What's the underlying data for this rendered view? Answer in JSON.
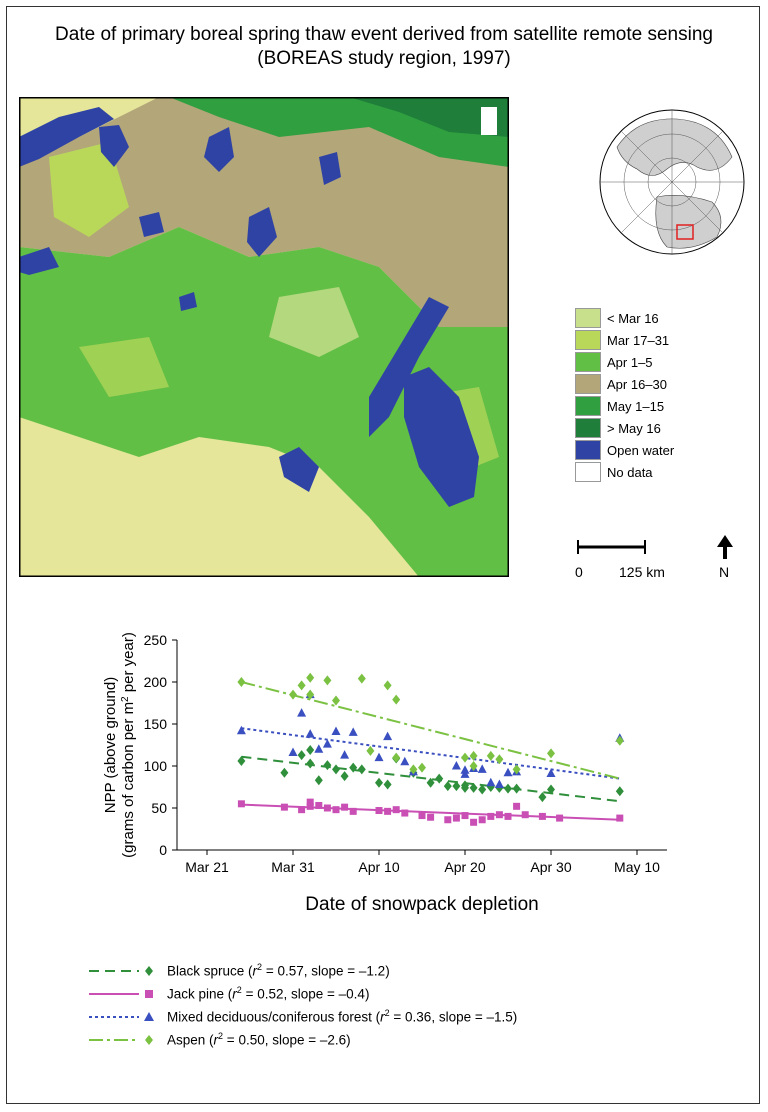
{
  "title": "Date of primary boreal spring thaw event derived from satellite remote sensing (BOREAS study region, 1997)",
  "map_legend": [
    {
      "label": "< Mar 16",
      "color": "#c8df8c"
    },
    {
      "label": "Mar 17–31",
      "color": "#b9d85a"
    },
    {
      "label": "Apr 1–5",
      "color": "#62bf46"
    },
    {
      "label": "Apr 16–30",
      "color": "#b3a679"
    },
    {
      "label": "May 1–15",
      "color": "#2f9f3f"
    },
    {
      "label": "> May 16",
      "color": "#1f7e3a"
    },
    {
      "label": "Open water",
      "color": "#2f43a4"
    },
    {
      "label": "No data",
      "color": "#ffffff"
    }
  ],
  "map_background": "#e5e69a",
  "scale_bar": {
    "start": "0",
    "end": "125 km"
  },
  "north_arrow": {
    "label": "N",
    "icon": "north-arrow-icon"
  },
  "chart_data": {
    "type": "scatter",
    "xlabel": "Date of snowpack depletion",
    "ylabel_line1": "NPP (above ground)",
    "ylabel_line2_pre": "(grams of carbon per m",
    "ylabel_sup": "2",
    "ylabel_line2_post": " per year)",
    "x_ticks": [
      "Mar 21",
      "Mar 31",
      "Apr 10",
      "Apr 20",
      "Apr 30",
      "May 10"
    ],
    "x_tick_days": [
      0,
      10,
      20,
      30,
      40,
      50
    ],
    "x_range_days": [
      0,
      50
    ],
    "ylim": [
      0,
      250
    ],
    "y_ticks": [
      0,
      50,
      100,
      150,
      200,
      250
    ],
    "series": [
      {
        "name": "Black spruce",
        "r2": "0.57",
        "slope": "–1.2",
        "color": "#2f8f3b",
        "marker": "diamond",
        "dash": "10,6",
        "line": [
          [
            4,
            111
          ],
          [
            48,
            58
          ]
        ],
        "points": [
          [
            4,
            106
          ],
          [
            9,
            92
          ],
          [
            11,
            113
          ],
          [
            12,
            103
          ],
          [
            12,
            119
          ],
          [
            13,
            83
          ],
          [
            14,
            101
          ],
          [
            15,
            96
          ],
          [
            16,
            88
          ],
          [
            17,
            98
          ],
          [
            18,
            96
          ],
          [
            20,
            80
          ],
          [
            21,
            78
          ],
          [
            22,
            109
          ],
          [
            24,
            92
          ],
          [
            26,
            80
          ],
          [
            27,
            85
          ],
          [
            28,
            76
          ],
          [
            29,
            76
          ],
          [
            30,
            77
          ],
          [
            30,
            74
          ],
          [
            31,
            74
          ],
          [
            32,
            72
          ],
          [
            33,
            75
          ],
          [
            34,
            74
          ],
          [
            35,
            73
          ],
          [
            36,
            73
          ],
          [
            39,
            63
          ],
          [
            40,
            72
          ],
          [
            48,
            70
          ]
        ]
      },
      {
        "name": "Jack pine",
        "r2": "0.52",
        "slope": "–0.4",
        "color": "#c94fb5",
        "marker": "square",
        "dash": "",
        "line": [
          [
            4,
            54
          ],
          [
            48,
            36
          ]
        ],
        "points": [
          [
            4,
            55
          ],
          [
            9,
            51
          ],
          [
            11,
            48
          ],
          [
            12,
            52
          ],
          [
            12,
            57
          ],
          [
            13,
            53
          ],
          [
            14,
            50
          ],
          [
            15,
            48
          ],
          [
            16,
            51
          ],
          [
            17,
            46
          ],
          [
            20,
            47
          ],
          [
            21,
            46
          ],
          [
            22,
            48
          ],
          [
            23,
            44
          ],
          [
            25,
            41
          ],
          [
            26,
            39
          ],
          [
            28,
            36
          ],
          [
            29,
            38
          ],
          [
            30,
            41
          ],
          [
            31,
            33
          ],
          [
            32,
            36
          ],
          [
            33,
            40
          ],
          [
            34,
            42
          ],
          [
            35,
            40
          ],
          [
            36,
            52
          ],
          [
            37,
            42
          ],
          [
            39,
            40
          ],
          [
            41,
            38
          ],
          [
            48,
            38
          ]
        ]
      },
      {
        "name": "Mixed deciduous/coniferous forest",
        "r2": "0.36",
        "slope": "–1.5",
        "color": "#3a4fc0",
        "marker": "triangle",
        "dash": "3,3",
        "line": [
          [
            4,
            145
          ],
          [
            48,
            85
          ]
        ],
        "points": [
          [
            4,
            142
          ],
          [
            10,
            116
          ],
          [
            11,
            163
          ],
          [
            12,
            185
          ],
          [
            12,
            138
          ],
          [
            13,
            120
          ],
          [
            14,
            126
          ],
          [
            15,
            141
          ],
          [
            16,
            113
          ],
          [
            17,
            140
          ],
          [
            20,
            110
          ],
          [
            21,
            135
          ],
          [
            23,
            105
          ],
          [
            24,
            93
          ],
          [
            29,
            100
          ],
          [
            30,
            90
          ],
          [
            30,
            95
          ],
          [
            31,
            97
          ],
          [
            32,
            96
          ],
          [
            33,
            80
          ],
          [
            34,
            78
          ],
          [
            35,
            92
          ],
          [
            36,
            93
          ],
          [
            40,
            91
          ],
          [
            48,
            133
          ]
        ]
      },
      {
        "name": "Aspen",
        "r2": "0.50",
        "slope": "–2.6",
        "color": "#7bc142",
        "marker": "diamond",
        "dash": "14,4,3,4",
        "line": [
          [
            4,
            200
          ],
          [
            48,
            85
          ]
        ],
        "points": [
          [
            4,
            200
          ],
          [
            10,
            185
          ],
          [
            11,
            196
          ],
          [
            12,
            205
          ],
          [
            12,
            185
          ],
          [
            14,
            202
          ],
          [
            15,
            178
          ],
          [
            18,
            204
          ],
          [
            19,
            118
          ],
          [
            21,
            196
          ],
          [
            22,
            179
          ],
          [
            22,
            110
          ],
          [
            24,
            96
          ],
          [
            25,
            98
          ],
          [
            30,
            110
          ],
          [
            31,
            112
          ],
          [
            31,
            100
          ],
          [
            33,
            112
          ],
          [
            34,
            108
          ],
          [
            36,
            96
          ],
          [
            40,
            115
          ],
          [
            48,
            130
          ]
        ]
      }
    ]
  }
}
